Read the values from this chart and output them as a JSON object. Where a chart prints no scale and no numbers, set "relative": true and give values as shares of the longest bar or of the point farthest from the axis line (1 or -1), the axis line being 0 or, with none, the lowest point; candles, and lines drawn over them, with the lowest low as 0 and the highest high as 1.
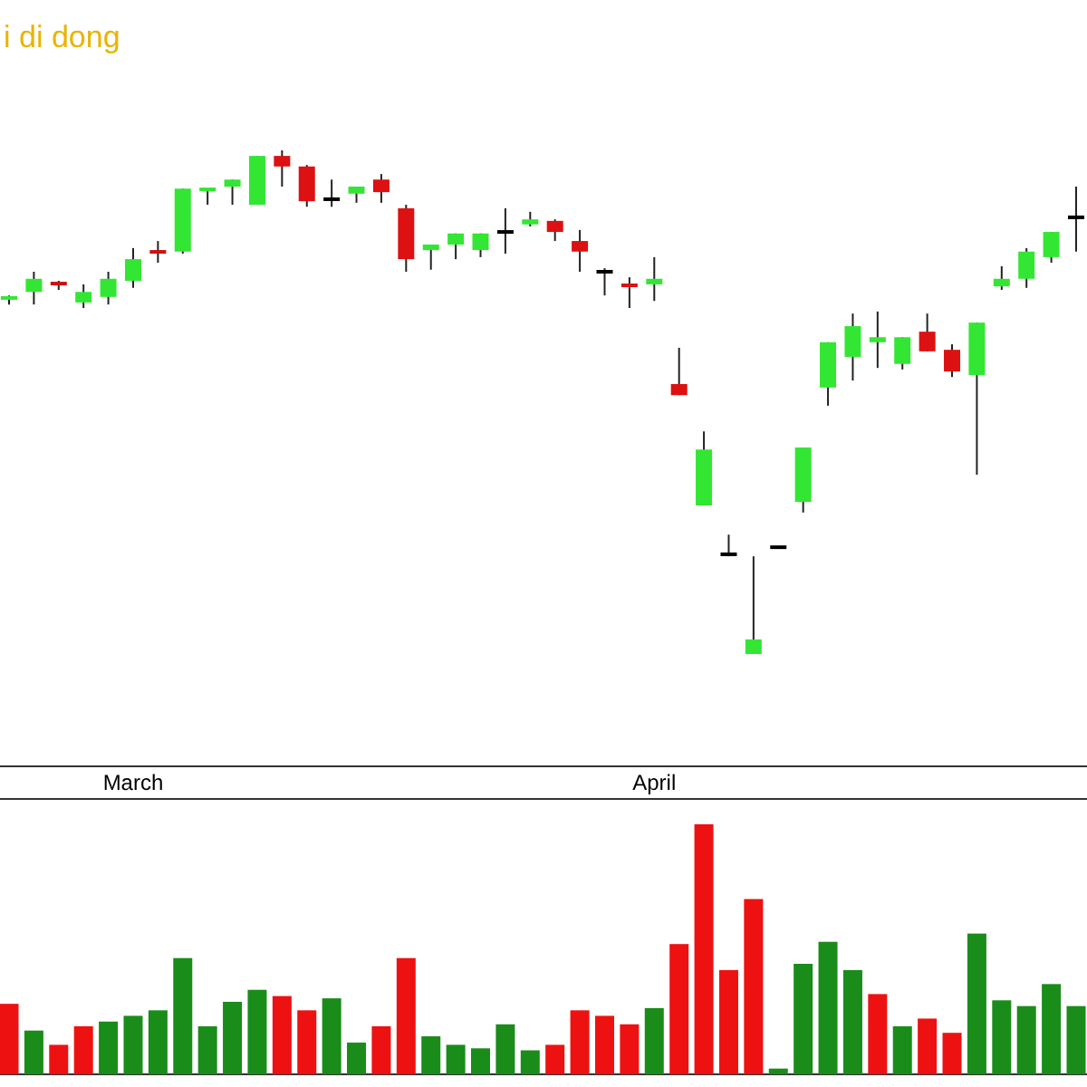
{
  "chart_data": [
    {
      "type": "candlestick",
      "title": "i di dong",
      "relative": true,
      "categories": [
        null,
        null,
        null,
        null,
        null,
        "March",
        null,
        null,
        null,
        null,
        null,
        null,
        null,
        null,
        null,
        null,
        null,
        null,
        null,
        null,
        null,
        null,
        null,
        null,
        null,
        null,
        "April",
        null,
        null,
        null,
        null,
        null,
        null,
        null,
        null,
        null,
        null,
        null,
        null,
        null,
        null,
        null,
        null,
        null
      ],
      "ohlc": [
        [
          0.705,
          0.712,
          0.694,
          0.709
        ],
        [
          0.719,
          0.759,
          0.694,
          0.745
        ],
        [
          0.737,
          0.741,
          0.723,
          0.734
        ],
        [
          0.698,
          0.734,
          0.687,
          0.719
        ],
        [
          0.709,
          0.759,
          0.694,
          0.745
        ],
        [
          0.741,
          0.806,
          0.727,
          0.784
        ],
        [
          0.802,
          0.82,
          0.777,
          0.795
        ],
        [
          0.799,
          0.924,
          0.795,
          0.924
        ],
        [
          0.921,
          0.924,
          0.892,
          0.924
        ],
        [
          0.928,
          0.942,
          0.892,
          0.942
        ],
        [
          0.892,
          0.989,
          0.892,
          0.989
        ],
        [
          0.989,
          1,
          0.928,
          0.968
        ],
        [
          0.968,
          0.971,
          0.888,
          0.899
        ],
        [
          0.903,
          0.942,
          0.888,
          0.903
        ],
        [
          0.914,
          0.928,
          0.896,
          0.928
        ],
        [
          0.942,
          0.953,
          0.896,
          0.917
        ],
        [
          0.885,
          0.892,
          0.759,
          0.784
        ],
        [
          0.802,
          0.813,
          0.763,
          0.813
        ],
        [
          0.813,
          0.835,
          0.784,
          0.835
        ],
        [
          0.802,
          0.835,
          0.788,
          0.835
        ],
        [
          0.838,
          0.885,
          0.795,
          0.838
        ],
        [
          0.853,
          0.878,
          0.849,
          0.863
        ],
        [
          0.86,
          0.863,
          0.82,
          0.838
        ],
        [
          0.82,
          0.842,
          0.759,
          0.799
        ],
        [
          0.759,
          0.766,
          0.712,
          0.759
        ],
        [
          0.734,
          0.748,
          0.687,
          0.73
        ],
        [
          0.734,
          0.788,
          0.701,
          0.745
        ],
        [
          0.536,
          0.608,
          0.514,
          0.514
        ],
        [
          0.295,
          0.442,
          0.295,
          0.406
        ],
        [
          0.198,
          0.237,
          0.194,
          0.198
        ],
        [
          0,
          0.194,
          0,
          0.029
        ],
        [
          0.212,
          0.212,
          0.212,
          0.212
        ],
        [
          0.302,
          0.41,
          0.281,
          0.41
        ],
        [
          0.529,
          0.619,
          0.493,
          0.619
        ],
        [
          0.59,
          0.676,
          0.543,
          0.651
        ],
        [
          0.619,
          0.68,
          0.568,
          0.629
        ],
        [
          0.576,
          0.629,
          0.565,
          0.629
        ],
        [
          0.64,
          0.676,
          0.601,
          0.601
        ],
        [
          0.604,
          0.615,
          0.55,
          0.561
        ],
        [
          0.554,
          0.658,
          0.356,
          0.658
        ],
        [
          0.73,
          0.77,
          0.723,
          0.745
        ],
        [
          0.745,
          0.806,
          0.727,
          0.799
        ],
        [
          0.788,
          0.838,
          0.777,
          0.838
        ],
        [
          0.867,
          0.928,
          0.799,
          0.867
        ]
      ],
      "colors": [
        "#33e633",
        "#33e633",
        "#cc1111",
        "#33e633",
        "#33e633",
        "#33e633",
        "#cc1111",
        "#33e633",
        "#33e633",
        "#33e633",
        "#33e633",
        "#dd1111",
        "#dd1111",
        "#000000",
        "#33e633",
        "#dd1111",
        "#dd1111",
        "#33e633",
        "#33e633",
        "#33e633",
        "#000000",
        "#33e633",
        "#dd1111",
        "#dd1111",
        "#000000",
        "#dd1111",
        "#33e633",
        "#dd1111",
        "#33e633",
        "#000000",
        "#33e633",
        "#000000",
        "#33e633",
        "#33e633",
        "#33e633",
        "#33e633",
        "#33e633",
        "#dd1111",
        "#dd1111",
        "#33e633",
        "#33e633",
        "#33e633",
        "#33e633",
        "#000000"
      ]
    },
    {
      "type": "bar",
      "relative": true,
      "categories": [
        null,
        null,
        null,
        null,
        null,
        null,
        null,
        null,
        null,
        null,
        null,
        null,
        null,
        null,
        null,
        null,
        null,
        null,
        null,
        null,
        null,
        null,
        null,
        null,
        null,
        null,
        null,
        null,
        null,
        null,
        null,
        null,
        null,
        null,
        null,
        null,
        null,
        null,
        null,
        null,
        null,
        null,
        null,
        null
      ],
      "values": [
        0.282,
        0.175,
        0.118,
        0.192,
        0.211,
        0.234,
        0.256,
        0.465,
        0.192,
        0.29,
        0.338,
        0.313,
        0.256,
        0.304,
        0.127,
        0.192,
        0.465,
        0.152,
        0.118,
        0.104,
        0.2,
        0.096,
        0.118,
        0.256,
        0.234,
        0.2,
        0.265,
        0.521,
        1,
        0.417,
        0.701,
        0.023,
        0.442,
        0.53,
        0.417,
        0.321,
        0.192,
        0.223,
        0.166,
        0.563,
        0.296,
        0.273,
        0.361,
        0.273
      ],
      "colors": [
        "#ee1111",
        "#1a8c1a",
        "#ee1111",
        "#ee1111",
        "#1a8c1a",
        "#1a8c1a",
        "#1a8c1a",
        "#1a8c1a",
        "#1a8c1a",
        "#1a8c1a",
        "#1a8c1a",
        "#ee1111",
        "#ee1111",
        "#1a8c1a",
        "#1a8c1a",
        "#ee1111",
        "#ee1111",
        "#1a8c1a",
        "#1a8c1a",
        "#1a8c1a",
        "#1a8c1a",
        "#1a8c1a",
        "#ee1111",
        "#ee1111",
        "#ee1111",
        "#ee1111",
        "#1a8c1a",
        "#ee1111",
        "#ee1111",
        "#ee1111",
        "#ee1111",
        "#1a8c1a",
        "#1a8c1a",
        "#1a8c1a",
        "#1a8c1a",
        "#ee1111",
        "#1a8c1a",
        "#ee1111",
        "#ee1111",
        "#1a8c1a",
        "#1a8c1a",
        "#1a8c1a",
        "#1a8c1a",
        "#1a8c1a"
      ]
    }
  ]
}
